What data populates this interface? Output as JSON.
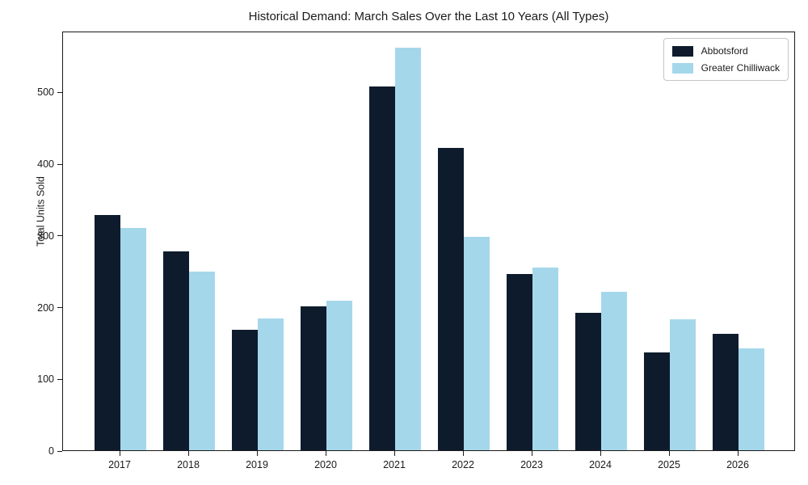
{
  "title": "Historical Demand: March Sales Over the Last 10 Years (All Types)",
  "chart_data": {
    "type": "bar",
    "title": "Historical Demand: March Sales Over the Last 10 Years (All Types)",
    "xlabel": "",
    "ylabel": "Total Units Sold",
    "categories": [
      "2017",
      "2018",
      "2019",
      "2020",
      "2021",
      "2022",
      "2023",
      "2024",
      "2025",
      "2026"
    ],
    "series": [
      {
        "name": "Abbotsford",
        "color": "#0e1b2c",
        "values": [
          328,
          277,
          168,
          201,
          507,
          422,
          246,
          192,
          136,
          162
        ]
      },
      {
        "name": "Greater Chilliwack",
        "color": "#a5d7eb",
        "values": [
          310,
          249,
          184,
          209,
          561,
          298,
          255,
          221,
          183,
          142
        ]
      }
    ],
    "yticks": [
      0,
      100,
      200,
      300,
      400,
      500
    ],
    "ylim": [
      0,
      585
    ],
    "grid": false,
    "legend_position": "upper right"
  }
}
